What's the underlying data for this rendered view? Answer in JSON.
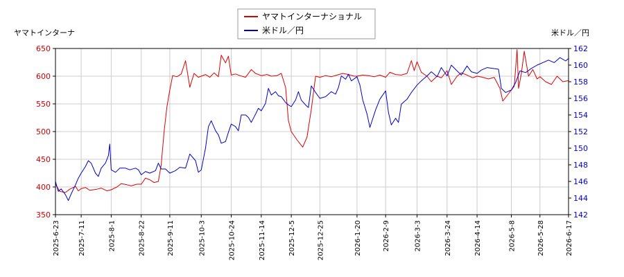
{
  "chart_data": {
    "type": "line",
    "left_axis_label": "ヤマトインターナ",
    "right_axis_label": "米ドル／円",
    "left_ylim": [
      350,
      650
    ],
    "left_yticks": [
      350,
      400,
      450,
      500,
      550,
      600,
      650
    ],
    "right_ylim": [
      142,
      162
    ],
    "right_yticks": [
      142,
      144,
      146,
      148,
      150,
      152,
      154,
      156,
      158,
      160,
      162
    ],
    "x_range": [
      "2025-06-23",
      "2026-06-17"
    ],
    "x_ticks": [
      "2025-6-23",
      "2025-7-11",
      "2025-8-1",
      "2025-8-22",
      "2025-9-11",
      "2025-10-3",
      "2025-10-24",
      "2025-11-14",
      "2025-12-5",
      "2025-12-25",
      "2026-1-20",
      "2026-2-9",
      "2026-3-3",
      "2026-3-24",
      "2026-4-14",
      "2026-5-8",
      "2026-5-28",
      "2026-6-17"
    ],
    "grid": true,
    "legend_position": "top-center",
    "series": [
      {
        "name": "ヤマトインターナショナル",
        "axis": "left",
        "color": "#dd0000",
        "points": [
          [
            "2025-06-23",
            405
          ],
          [
            "2025-06-26",
            392
          ],
          [
            "2025-06-30",
            390
          ],
          [
            "2025-07-03",
            396
          ],
          [
            "2025-07-07",
            401
          ],
          [
            "2025-07-09",
            393
          ],
          [
            "2025-07-11",
            397
          ],
          [
            "2025-07-14",
            399
          ],
          [
            "2025-07-17",
            394
          ],
          [
            "2025-07-22",
            396
          ],
          [
            "2025-07-25",
            398
          ],
          [
            "2025-07-29",
            393
          ],
          [
            "2025-08-01",
            395
          ],
          [
            "2025-08-05",
            400
          ],
          [
            "2025-08-08",
            406
          ],
          [
            "2025-08-12",
            404
          ],
          [
            "2025-08-15",
            402
          ],
          [
            "2025-08-19",
            405
          ],
          [
            "2025-08-22",
            405
          ],
          [
            "2025-08-25",
            416
          ],
          [
            "2025-08-28",
            413
          ],
          [
            "2025-08-31",
            408
          ],
          [
            "2025-09-03",
            410
          ],
          [
            "2025-09-05",
            440
          ],
          [
            "2025-09-07",
            500
          ],
          [
            "2025-09-09",
            545
          ],
          [
            "2025-09-11",
            575
          ],
          [
            "2025-09-13",
            601
          ],
          [
            "2025-09-16",
            599
          ],
          [
            "2025-09-19",
            604
          ],
          [
            "2025-09-22",
            628
          ],
          [
            "2025-09-25",
            580
          ],
          [
            "2025-09-28",
            605
          ],
          [
            "2025-10-01",
            598
          ],
          [
            "2025-10-03",
            600
          ],
          [
            "2025-10-06",
            603
          ],
          [
            "2025-10-09",
            598
          ],
          [
            "2025-10-12",
            606
          ],
          [
            "2025-10-15",
            599
          ],
          [
            "2025-10-17",
            638
          ],
          [
            "2025-10-20",
            624
          ],
          [
            "2025-10-22",
            636
          ],
          [
            "2025-10-24",
            602
          ],
          [
            "2025-10-27",
            604
          ],
          [
            "2025-10-30",
            601
          ],
          [
            "2025-11-03",
            598
          ],
          [
            "2025-11-07",
            612
          ],
          [
            "2025-11-10",
            605
          ],
          [
            "2025-11-14",
            601
          ],
          [
            "2025-11-18",
            603
          ],
          [
            "2025-11-21",
            600
          ],
          [
            "2025-11-25",
            601
          ],
          [
            "2025-11-28",
            605
          ],
          [
            "2025-12-01",
            580
          ],
          [
            "2025-12-03",
            520
          ],
          [
            "2025-12-05",
            500
          ],
          [
            "2025-12-09",
            485
          ],
          [
            "2025-12-13",
            472
          ],
          [
            "2025-12-16",
            490
          ],
          [
            "2025-12-19",
            540
          ],
          [
            "2025-12-22",
            600
          ],
          [
            "2025-12-25",
            598
          ],
          [
            "2025-12-29",
            601
          ],
          [
            "2026-01-02",
            599
          ],
          [
            "2026-01-06",
            602
          ],
          [
            "2026-01-10",
            605
          ],
          [
            "2026-01-14",
            603
          ],
          [
            "2026-01-18",
            600
          ],
          [
            "2026-01-20",
            600
          ],
          [
            "2026-01-24",
            602
          ],
          [
            "2026-01-28",
            601
          ],
          [
            "2026-02-01",
            599
          ],
          [
            "2026-02-05",
            602
          ],
          [
            "2026-02-09",
            598
          ],
          [
            "2026-02-12",
            607
          ],
          [
            "2026-02-16",
            603
          ],
          [
            "2026-02-20",
            602
          ],
          [
            "2026-02-24",
            605
          ],
          [
            "2026-02-27",
            628
          ],
          [
            "2026-03-01",
            610
          ],
          [
            "2026-03-03",
            626
          ],
          [
            "2026-03-06",
            607
          ],
          [
            "2026-03-10",
            600
          ],
          [
            "2026-03-13",
            590
          ],
          [
            "2026-03-17",
            600
          ],
          [
            "2026-03-20",
            597
          ],
          [
            "2026-03-24",
            610
          ],
          [
            "2026-03-27",
            585
          ],
          [
            "2026-03-31",
            600
          ],
          [
            "2026-04-03",
            606
          ],
          [
            "2026-04-07",
            602
          ],
          [
            "2026-04-11",
            597
          ],
          [
            "2026-04-14",
            600
          ],
          [
            "2026-04-18",
            598
          ],
          [
            "2026-04-22",
            595
          ],
          [
            "2026-04-26",
            598
          ],
          [
            "2026-04-30",
            578
          ],
          [
            "2026-05-02",
            555
          ],
          [
            "2026-05-05",
            565
          ],
          [
            "2026-05-08",
            575
          ],
          [
            "2026-05-10",
            582
          ],
          [
            "2026-05-12",
            648
          ],
          [
            "2026-05-13",
            578
          ],
          [
            "2026-05-15",
            605
          ],
          [
            "2026-05-17",
            645
          ],
          [
            "2026-05-20",
            600
          ],
          [
            "2026-05-23",
            612
          ],
          [
            "2026-05-26",
            595
          ],
          [
            "2026-05-28",
            599
          ],
          [
            "2026-06-01",
            590
          ],
          [
            "2026-06-05",
            585
          ],
          [
            "2026-06-09",
            600
          ],
          [
            "2026-06-13",
            590
          ],
          [
            "2026-06-17",
            592
          ]
        ]
      },
      {
        "name": "米ドル／円",
        "axis": "right",
        "color": "#0000cc",
        "points": [
          [
            "2025-06-23",
            146.0
          ],
          [
            "2025-06-25",
            144.8
          ],
          [
            "2025-06-27",
            145.1
          ],
          [
            "2025-06-30",
            144.4
          ],
          [
            "2025-07-02",
            143.7
          ],
          [
            "2025-07-04",
            144.5
          ],
          [
            "2025-07-07",
            145.6
          ],
          [
            "2025-07-09",
            146.4
          ],
          [
            "2025-07-11",
            147.0
          ],
          [
            "2025-07-14",
            147.8
          ],
          [
            "2025-07-16",
            148.5
          ],
          [
            "2025-07-18",
            148.2
          ],
          [
            "2025-07-21",
            147.0
          ],
          [
            "2025-07-23",
            146.6
          ],
          [
            "2025-07-25",
            147.6
          ],
          [
            "2025-07-28",
            148.2
          ],
          [
            "2025-07-30",
            149.1
          ],
          [
            "2025-07-31",
            150.5
          ],
          [
            "2025-08-01",
            147.4
          ],
          [
            "2025-08-04",
            147.1
          ],
          [
            "2025-08-07",
            147.6
          ],
          [
            "2025-08-11",
            147.6
          ],
          [
            "2025-08-14",
            147.4
          ],
          [
            "2025-08-18",
            147.6
          ],
          [
            "2025-08-20",
            147.4
          ],
          [
            "2025-08-22",
            146.8
          ],
          [
            "2025-08-25",
            147.2
          ],
          [
            "2025-08-28",
            147.0
          ],
          [
            "2025-09-01",
            147.3
          ],
          [
            "2025-09-03",
            148.2
          ],
          [
            "2025-09-05",
            147.5
          ],
          [
            "2025-09-08",
            147.5
          ],
          [
            "2025-09-11",
            147.0
          ],
          [
            "2025-09-15",
            147.3
          ],
          [
            "2025-09-18",
            147.7
          ],
          [
            "2025-09-22",
            147.6
          ],
          [
            "2025-09-25",
            149.3
          ],
          [
            "2025-09-29",
            148.5
          ],
          [
            "2025-10-01",
            147.1
          ],
          [
            "2025-10-03",
            147.4
          ],
          [
            "2025-10-06",
            150.0
          ],
          [
            "2025-10-08",
            152.6
          ],
          [
            "2025-10-10",
            153.3
          ],
          [
            "2025-10-13",
            152.1
          ],
          [
            "2025-10-15",
            151.6
          ],
          [
            "2025-10-17",
            150.6
          ],
          [
            "2025-10-20",
            150.8
          ],
          [
            "2025-10-22",
            151.9
          ],
          [
            "2025-10-24",
            152.9
          ],
          [
            "2025-10-27",
            152.6
          ],
          [
            "2025-10-29",
            152.1
          ],
          [
            "2025-10-31",
            154.0
          ],
          [
            "2025-11-03",
            154.0
          ],
          [
            "2025-11-05",
            153.7
          ],
          [
            "2025-11-07",
            153.1
          ],
          [
            "2025-11-10",
            154.1
          ],
          [
            "2025-11-12",
            154.8
          ],
          [
            "2025-11-14",
            154.5
          ],
          [
            "2025-11-17",
            155.4
          ],
          [
            "2025-11-19",
            157.2
          ],
          [
            "2025-11-21",
            156.4
          ],
          [
            "2025-11-24",
            156.8
          ],
          [
            "2025-11-26",
            156.3
          ],
          [
            "2025-11-28",
            156.2
          ],
          [
            "2025-12-01",
            155.5
          ],
          [
            "2025-12-03",
            155.2
          ],
          [
            "2025-12-05",
            155.0
          ],
          [
            "2025-12-08",
            155.8
          ],
          [
            "2025-12-10",
            156.8
          ],
          [
            "2025-12-12",
            155.8
          ],
          [
            "2025-12-15",
            155.2
          ],
          [
            "2025-12-17",
            154.9
          ],
          [
            "2025-12-19",
            157.5
          ],
          [
            "2025-12-22",
            156.7
          ],
          [
            "2025-12-25",
            156.0
          ],
          [
            "2025-12-29",
            156.2
          ],
          [
            "2026-01-02",
            156.8
          ],
          [
            "2026-01-05",
            156.5
          ],
          [
            "2026-01-07",
            157.3
          ],
          [
            "2026-01-09",
            158.7
          ],
          [
            "2026-01-12",
            158.3
          ],
          [
            "2026-01-14",
            158.9
          ],
          [
            "2026-01-16",
            158.1
          ],
          [
            "2026-01-20",
            158.6
          ],
          [
            "2026-01-22",
            157.6
          ],
          [
            "2026-01-24",
            155.8
          ],
          [
            "2026-01-27",
            154.1
          ],
          [
            "2026-01-29",
            152.5
          ],
          [
            "2026-02-02",
            154.6
          ],
          [
            "2026-02-05",
            155.9
          ],
          [
            "2026-02-09",
            156.9
          ],
          [
            "2026-02-11",
            154.3
          ],
          [
            "2026-02-13",
            152.8
          ],
          [
            "2026-02-16",
            153.6
          ],
          [
            "2026-02-18",
            153.1
          ],
          [
            "2026-02-20",
            155.3
          ],
          [
            "2026-02-24",
            155.9
          ],
          [
            "2026-02-27",
            156.7
          ],
          [
            "2026-03-03",
            157.6
          ],
          [
            "2026-03-06",
            158.1
          ],
          [
            "2026-03-10",
            158.7
          ],
          [
            "2026-03-13",
            159.2
          ],
          [
            "2026-03-17",
            158.6
          ],
          [
            "2026-03-20",
            159.7
          ],
          [
            "2026-03-24",
            158.7
          ],
          [
            "2026-03-27",
            160.0
          ],
          [
            "2026-03-31",
            159.3
          ],
          [
            "2026-04-03",
            158.8
          ],
          [
            "2026-04-07",
            159.9
          ],
          [
            "2026-04-10",
            159.2
          ],
          [
            "2026-04-14",
            159.0
          ],
          [
            "2026-04-17",
            159.4
          ],
          [
            "2026-04-21",
            159.7
          ],
          [
            "2026-04-25",
            159.6
          ],
          [
            "2026-04-29",
            159.5
          ],
          [
            "2026-05-01",
            157.2
          ],
          [
            "2026-05-04",
            156.7
          ],
          [
            "2026-05-08",
            157.0
          ],
          [
            "2026-05-11",
            157.9
          ],
          [
            "2026-05-14",
            159.3
          ],
          [
            "2026-05-18",
            159.1
          ],
          [
            "2026-05-22",
            159.6
          ],
          [
            "2026-05-26",
            160.0
          ],
          [
            "2026-05-30",
            160.3
          ],
          [
            "2026-06-03",
            160.6
          ],
          [
            "2026-06-07",
            160.3
          ],
          [
            "2026-06-11",
            160.9
          ],
          [
            "2026-06-15",
            160.5
          ],
          [
            "2026-06-17",
            160.8
          ]
        ]
      }
    ]
  }
}
